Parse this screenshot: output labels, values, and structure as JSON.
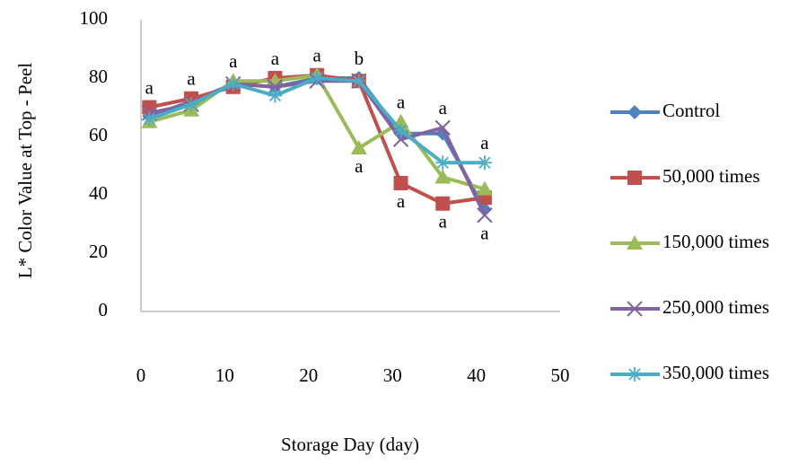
{
  "chart_data": {
    "type": "line",
    "y_label": "L* Color Value at Top - Peel",
    "x_label": "Storage Day (day)",
    "x": [
      1,
      6,
      11,
      16,
      21,
      26,
      31,
      36,
      41
    ],
    "series": [
      {
        "name": "Control",
        "color": "#4f81bd",
        "marker": "diamond",
        "values": [
          67,
          72,
          78,
          77,
          80,
          80,
          61,
          61,
          35
        ]
      },
      {
        "name": "50,000 times",
        "color": "#c0504d",
        "marker": "square",
        "values": [
          70,
          73,
          77,
          80,
          81,
          79,
          44,
          37,
          39
        ]
      },
      {
        "name": "150,000 times",
        "color": "#9bbb59",
        "marker": "triangle",
        "values": [
          65,
          69,
          79,
          79,
          81,
          56,
          65,
          46,
          42
        ]
      },
      {
        "name": "250,000 times",
        "color": "#8064a2",
        "marker": "x",
        "values": [
          68,
          71,
          78,
          77,
          79,
          79,
          59,
          63,
          33
        ]
      },
      {
        "name": "350,000 times",
        "color": "#4bacc6",
        "marker": "star",
        "values": [
          66,
          71,
          78,
          74,
          80,
          79,
          62,
          51,
          51
        ]
      }
    ],
    "annotations": [
      {
        "text": "a",
        "x": 1,
        "position": "above"
      },
      {
        "text": "a",
        "x": 6,
        "position": "above"
      },
      {
        "text": "a",
        "x": 11,
        "position": "above"
      },
      {
        "text": "a",
        "x": 16,
        "position": "above"
      },
      {
        "text": "a",
        "x": 21,
        "position": "above"
      },
      {
        "text": "b",
        "x": 26,
        "position": "above"
      },
      {
        "text": "a",
        "x": 26,
        "position": "below"
      },
      {
        "text": "a",
        "x": 31,
        "position": "above"
      },
      {
        "text": "a",
        "x": 31,
        "position": "below"
      },
      {
        "text": "a",
        "x": 36,
        "position": "above"
      },
      {
        "text": "a",
        "x": 36,
        "position": "below"
      },
      {
        "text": "a",
        "x": 41,
        "position": "above"
      },
      {
        "text": "a",
        "x": 41,
        "position": "below"
      }
    ],
    "xlim": [
      0,
      50
    ],
    "xticks": [
      0,
      10,
      20,
      30,
      40,
      50
    ],
    "ylim": [
      0,
      100
    ],
    "yticks": [
      0,
      20,
      40,
      60,
      80,
      100
    ],
    "legend": "right"
  }
}
